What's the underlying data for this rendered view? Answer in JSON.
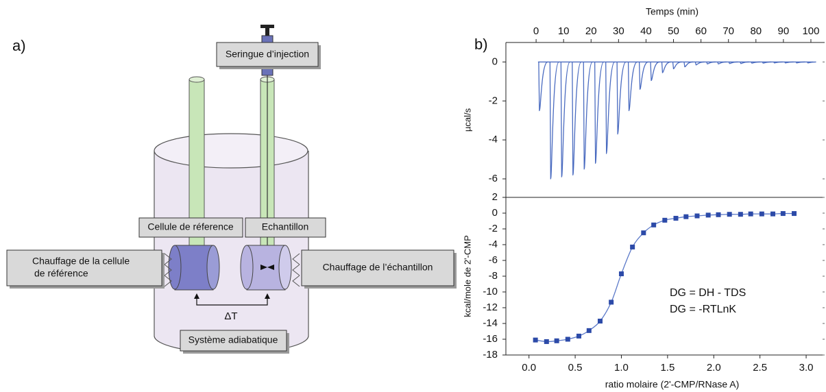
{
  "diagram": {
    "label": "a)",
    "syringe": "Seringue d’injection",
    "reference_cell": "Cellule de réference",
    "sample_cell": "Echantillon",
    "reference_heating": [
      "Chauffage de la cellule",
      "de référence"
    ],
    "sample_heating": "Chauffage de l’échantillon",
    "delta_t": "ΔT",
    "adiabatic": "Système adiabatique"
  },
  "panel_label": "b)",
  "chart_data": [
    {
      "type": "spikes",
      "xlabel": "Temps (min)",
      "ylabel": "µcal/s",
      "x": [
        1.2,
        5.3,
        9.3,
        13.4,
        17.5,
        21.6,
        25.6,
        29.7,
        33.8,
        37.8,
        41.9,
        46.0,
        50.0,
        54.1,
        58.2,
        62.3,
        66.3,
        70.4,
        74.5,
        78.5,
        82.6,
        86.7,
        90.7,
        94.8,
        98.9
      ],
      "values": [
        -2.5,
        -6.0,
        -5.9,
        -5.8,
        -5.5,
        -5.2,
        -4.7,
        -3.7,
        -2.5,
        -1.4,
        -0.95,
        -0.55,
        -0.35,
        -0.25,
        -0.15,
        -0.1,
        -0.1,
        -0.08,
        -0.08,
        -0.06,
        -0.06,
        -0.05,
        -0.05,
        -0.05,
        -0.05
      ],
      "color": "#4a6bc0",
      "xlim": [
        -11,
        105
      ],
      "ylim": [
        -6.95,
        1
      ],
      "xticks": [
        0,
        10,
        20,
        30,
        40,
        50,
        60,
        70,
        80,
        90,
        100
      ],
      "yticks": [
        0,
        -2,
        -4,
        -6
      ]
    },
    {
      "type": "scatter",
      "xlabel": "ratio molaire (2'-CMP/RNase A)",
      "ylabel": "kcal/mole de 2'-CMP",
      "x": [
        0.07,
        0.19,
        0.3,
        0.42,
        0.54,
        0.65,
        0.77,
        0.89,
        1.0,
        1.12,
        1.24,
        1.35,
        1.47,
        1.59,
        1.7,
        1.82,
        1.94,
        2.05,
        2.17,
        2.29,
        2.4,
        2.52,
        2.64,
        2.75,
        2.87
      ],
      "values": [
        -16.1,
        -16.3,
        -16.2,
        -16.0,
        -15.6,
        -14.9,
        -13.7,
        -11.3,
        -7.7,
        -4.3,
        -2.5,
        -1.5,
        -0.9,
        -0.65,
        -0.45,
        -0.35,
        -0.25,
        -0.2,
        -0.15,
        -0.15,
        -0.1,
        -0.1,
        -0.1,
        -0.05,
        -0.05
      ],
      "color": "#2c4aa8",
      "line": true,
      "xlim": [
        -0.25,
        3.2
      ],
      "ylim": [
        -18,
        2
      ],
      "xticks": [
        {
          "value": 0,
          "label": "0.0"
        },
        {
          "value": 0.5,
          "label": "0.5"
        },
        {
          "value": 1,
          "label": "1.0"
        },
        {
          "value": 1.5,
          "label": "1.5"
        },
        {
          "value": 2,
          "label": "2.0"
        },
        {
          "value": 2.5,
          "label": "2.5"
        },
        {
          "value": 3,
          "label": "3.0"
        }
      ],
      "yticks": [
        2,
        0,
        -2,
        -4,
        -6,
        -8,
        -10,
        -12,
        -14,
        -16,
        -18
      ],
      "annotations": [
        "DG = DH - TDS",
        "DG = -RTLnK"
      ]
    }
  ]
}
